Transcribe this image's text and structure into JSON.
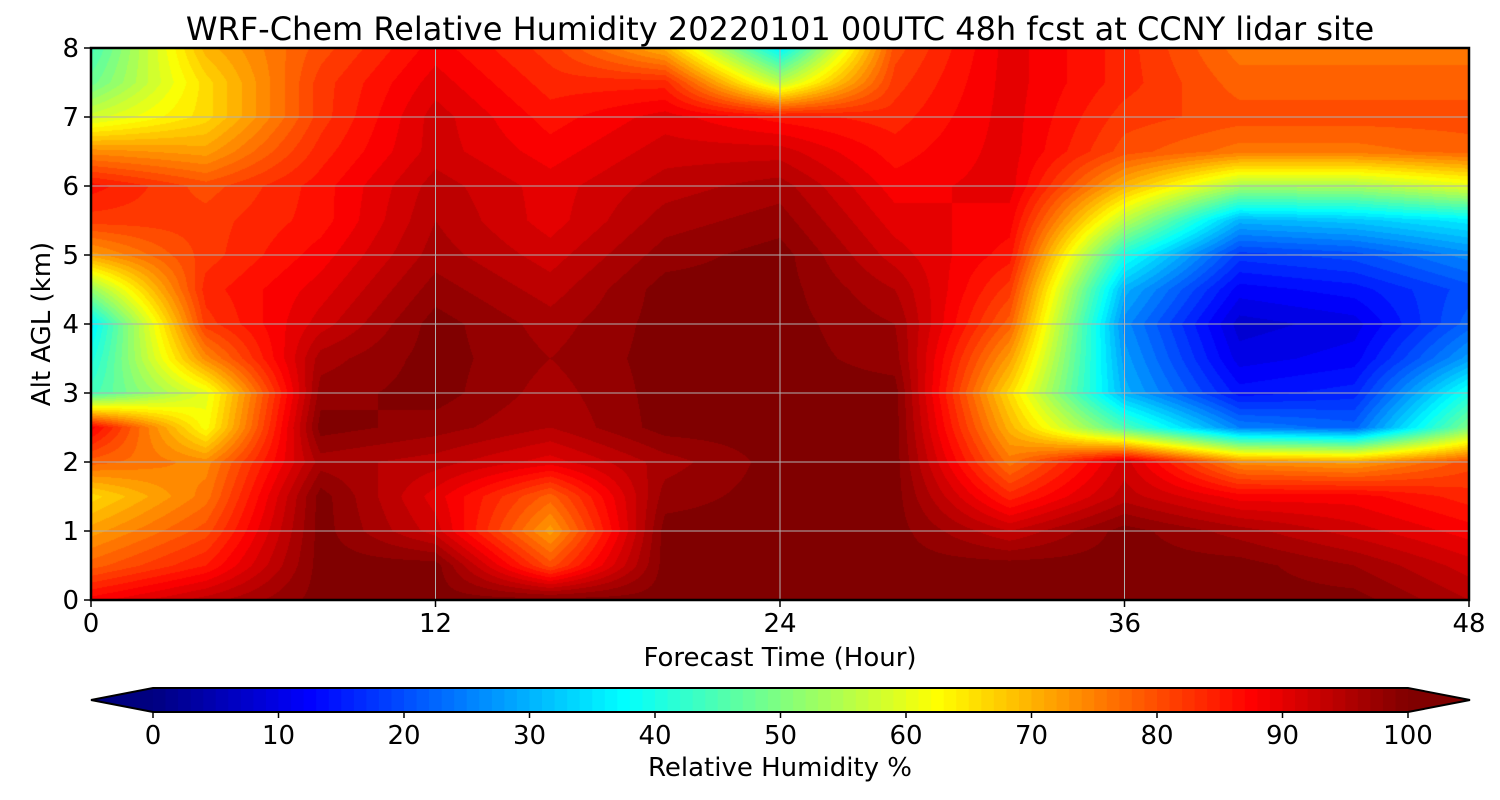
{
  "chart_data": {
    "type": "heatmap",
    "title": "WRF-Chem Relative Humidity 20220101 00UTC 48h fcst at CCNY lidar site",
    "xlabel": "Forecast Time (Hour)",
    "ylabel": "Alt AGL (km)",
    "xlim": [
      0,
      48
    ],
    "ylim": [
      0,
      8
    ],
    "x_ticks": [
      0,
      12,
      24,
      36,
      48
    ],
    "y_ticks": [
      0,
      1,
      2,
      3,
      4,
      5,
      6,
      7,
      8
    ],
    "grid": true,
    "x_hours": [
      0,
      4,
      8,
      12,
      16,
      20,
      24,
      28,
      32,
      36,
      40,
      44,
      48
    ],
    "y_km": [
      0,
      0.5,
      1,
      1.5,
      2,
      2.5,
      3,
      3.5,
      4,
      4.5,
      5,
      5.5,
      6,
      6.5,
      7,
      7.5,
      8
    ],
    "rh_percent": [
      [
        88,
        94,
        100,
        100,
        100,
        100,
        100,
        100,
        100,
        100,
        100,
        100,
        95
      ],
      [
        78,
        85,
        100,
        100,
        80,
        100,
        100,
        100,
        100,
        100,
        100,
        97,
        92
      ],
      [
        72,
        80,
        100,
        92,
        72,
        100,
        100,
        100,
        93,
        100,
        96,
        92,
        88
      ],
      [
        66,
        76,
        100,
        90,
        78,
        98,
        100,
        100,
        84,
        94,
        88,
        88,
        84
      ],
      [
        78,
        74,
        96,
        94,
        90,
        96,
        100,
        100,
        76,
        92,
        74,
        72,
        80
      ],
      [
        88,
        62,
        100,
        98,
        95,
        100,
        100,
        100,
        70,
        45,
        25,
        22,
        50
      ],
      [
        44,
        60,
        98,
        100,
        96,
        100,
        100,
        100,
        66,
        30,
        14,
        16,
        40
      ],
      [
        40,
        74,
        96,
        100,
        97,
        100,
        100,
        98,
        72,
        28,
        10,
        12,
        28
      ],
      [
        36,
        82,
        92,
        100,
        96,
        100,
        100,
        97,
        78,
        26,
        8,
        10,
        22
      ],
      [
        52,
        84,
        90,
        98,
        94,
        100,
        100,
        95,
        82,
        30,
        12,
        14,
        20
      ],
      [
        72,
        82,
        88,
        96,
        92,
        98,
        100,
        92,
        86,
        40,
        18,
        20,
        26
      ],
      [
        82,
        82,
        86,
        95,
        90,
        96,
        98,
        90,
        88,
        56,
        30,
        32,
        36
      ],
      [
        86,
        80,
        86,
        94,
        90,
        94,
        96,
        88,
        90,
        70,
        54,
        54,
        60
      ],
      [
        74,
        72,
        84,
        92,
        88,
        92,
        92,
        86,
        90,
        80,
        76,
        76,
        78
      ],
      [
        58,
        66,
        82,
        92,
        86,
        90,
        86,
        84,
        90,
        82,
        80,
        80,
        80
      ],
      [
        48,
        66,
        82,
        90,
        84,
        84,
        56,
        82,
        90,
        84,
        78,
        78,
        78
      ],
      [
        44,
        70,
        80,
        88,
        82,
        70,
        36,
        80,
        90,
        84,
        76,
        76,
        76
      ]
    ],
    "colorbar": {
      "label": "Relative Humidity %",
      "min": 0,
      "max": 100,
      "ticks": [
        0,
        10,
        20,
        30,
        40,
        50,
        60,
        70,
        80,
        90,
        100
      ],
      "extend": "both",
      "colormap": "jet"
    }
  }
}
